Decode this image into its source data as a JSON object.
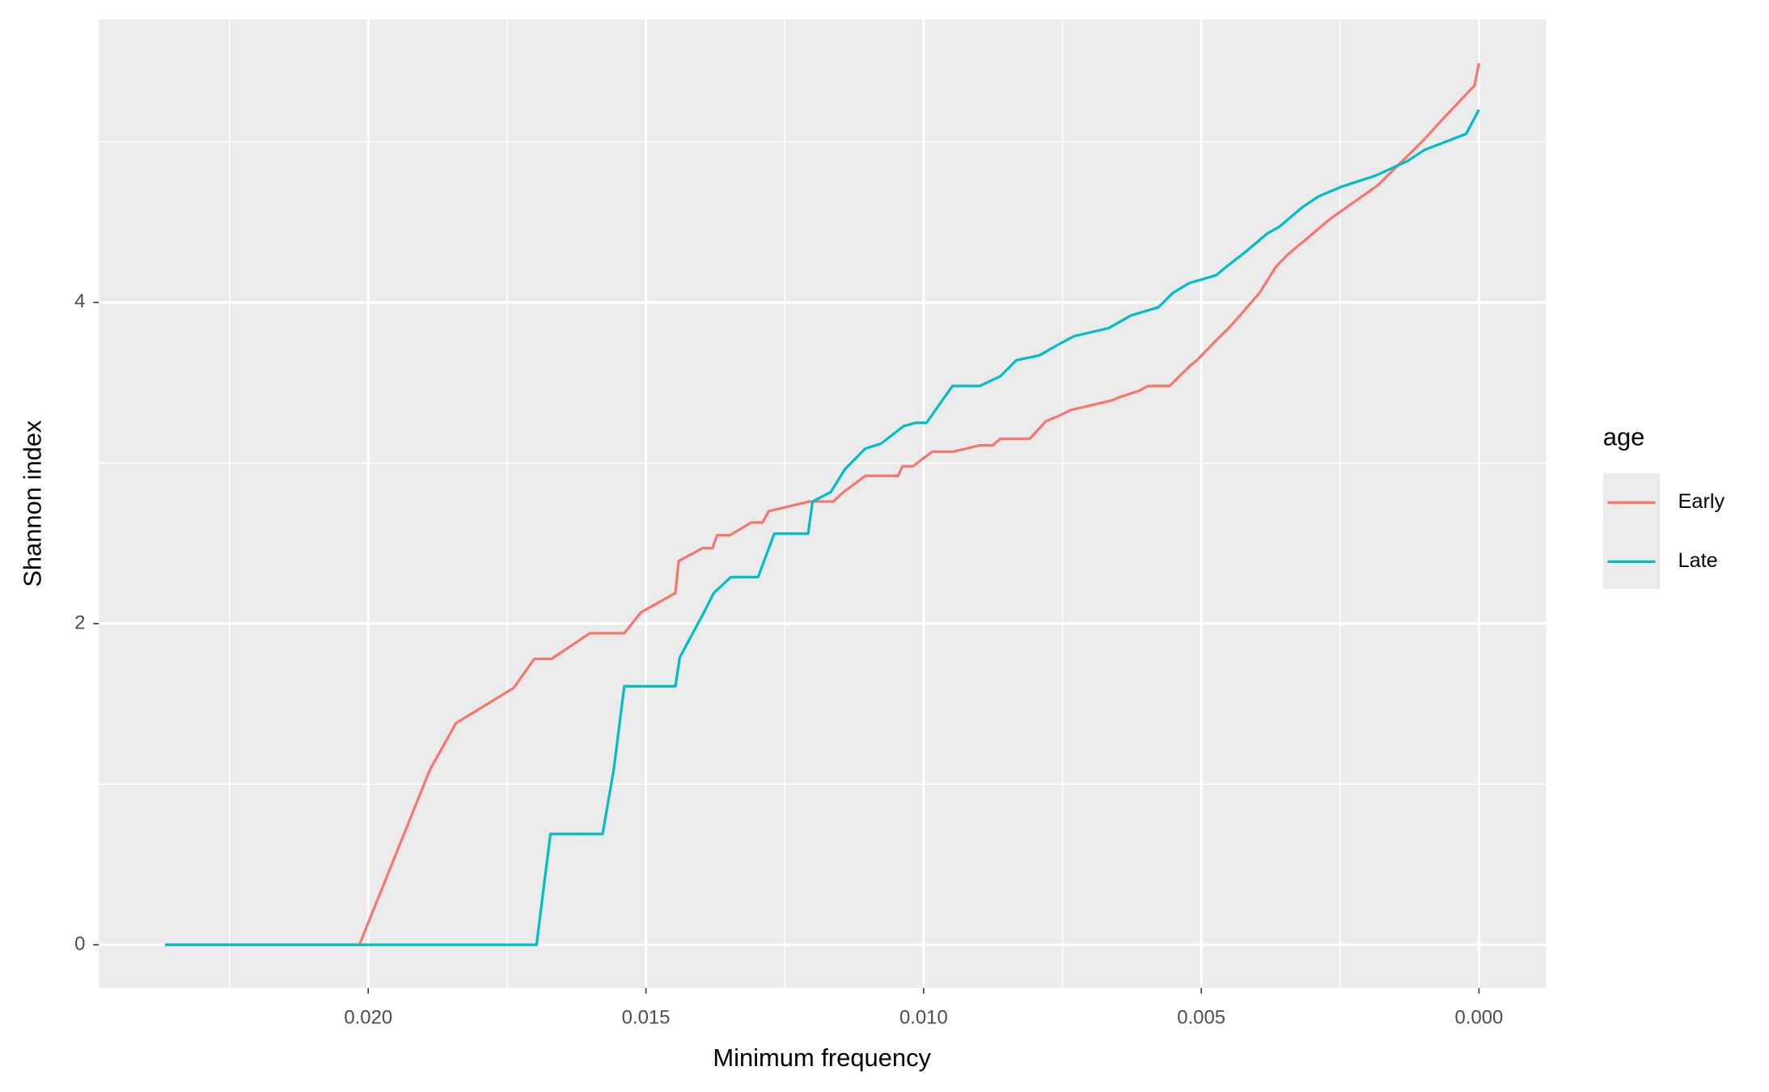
{
  "chart_data": {
    "type": "line",
    "x_label": "Minimum frequency",
    "y_label": "Shannon index",
    "xlim": [
      0.02485,
      -0.00121
    ],
    "ylim": [
      -0.269,
      5.763
    ],
    "xticks": [
      {
        "value": 0.02,
        "label": "0.020"
      },
      {
        "value": 0.015,
        "label": "0.015"
      },
      {
        "value": 0.01,
        "label": "0.010"
      },
      {
        "value": 0.005,
        "label": "0.005"
      },
      {
        "value": 0,
        "label": "0.000"
      }
    ],
    "yticks": [
      0,
      2,
      4
    ],
    "x_minor_grid": [
      0.0225,
      0.0175,
      0.0125,
      0.0075,
      0.0025
    ],
    "y_minor_grid": [
      1,
      3,
      5
    ],
    "grid": true,
    "legend_title": "age",
    "legend_position": "right",
    "series": [
      {
        "name": "Early",
        "color": "#f8766d",
        "x": [
          0.02366,
          0.02016,
          0.01889,
          0.01842,
          0.01738,
          0.01701,
          0.0167,
          0.01601,
          0.01539,
          0.01509,
          0.01447,
          0.01441,
          0.01398,
          0.0138,
          0.01372,
          0.01349,
          0.0131,
          0.0129,
          0.01279,
          0.01206,
          0.01163,
          0.01144,
          0.01105,
          0.01046,
          0.01038,
          0.01019,
          0.00985,
          0.00948,
          0.00899,
          0.00876,
          0.00862,
          0.00809,
          0.0078,
          0.00759,
          0.00735,
          0.00661,
          0.00647,
          0.00612,
          0.00596,
          0.00557,
          0.00522,
          0.00508,
          0.00477,
          0.00448,
          0.0042,
          0.00395,
          0.00366,
          0.00344,
          0.00309,
          0.00268,
          0.00223,
          0.00182,
          0.00141,
          0.001,
          0.00063,
          0.00033,
          8e-05,
          0
        ],
        "values": [
          0,
          0,
          1.09,
          1.38,
          1.6,
          1.78,
          1.78,
          1.94,
          1.94,
          2.07,
          2.19,
          2.39,
          2.47,
          2.47,
          2.55,
          2.55,
          2.63,
          2.63,
          2.7,
          2.76,
          2.76,
          2.82,
          2.92,
          2.92,
          2.98,
          2.98,
          3.07,
          3.07,
          3.11,
          3.11,
          3.15,
          3.15,
          3.26,
          3.29,
          3.33,
          3.39,
          3.41,
          3.45,
          3.48,
          3.48,
          3.6,
          3.64,
          3.75,
          3.85,
          3.96,
          4.06,
          4.22,
          4.3,
          4.4,
          4.52,
          4.63,
          4.73,
          4.87,
          5.01,
          5.15,
          5.26,
          5.35,
          5.49
        ]
      },
      {
        "name": "Late",
        "color": "#00bfc4",
        "x": [
          0.02366,
          0.01697,
          0.01672,
          0.01578,
          0.01558,
          0.01539,
          0.01447,
          0.01439,
          0.01394,
          0.01378,
          0.01347,
          0.01298,
          0.01269,
          0.01208,
          0.012,
          0.01167,
          0.01142,
          0.01105,
          0.01077,
          0.01036,
          0.01015,
          0.00995,
          0.00948,
          0.00899,
          0.00862,
          0.00833,
          0.00792,
          0.00751,
          0.00729,
          0.00667,
          0.00626,
          0.00577,
          0.00551,
          0.00522,
          0.00473,
          0.00452,
          0.00422,
          0.00381,
          0.0036,
          0.00319,
          0.00289,
          0.00248,
          0.00186,
          0.00129,
          0.00098,
          0.00053,
          0.00023,
          0
        ],
        "values": [
          0,
          0,
          0.69,
          0.69,
          1.09,
          1.61,
          1.61,
          1.79,
          2.08,
          2.19,
          2.29,
          2.29,
          2.56,
          2.56,
          2.76,
          2.82,
          2.96,
          3.09,
          3.12,
          3.23,
          3.25,
          3.25,
          3.48,
          3.48,
          3.54,
          3.64,
          3.67,
          3.75,
          3.79,
          3.84,
          3.92,
          3.97,
          4.06,
          4.12,
          4.17,
          4.23,
          4.31,
          4.43,
          4.47,
          4.59,
          4.66,
          4.72,
          4.79,
          4.88,
          4.95,
          5.01,
          5.05,
          5.2
        ]
      }
    ]
  }
}
